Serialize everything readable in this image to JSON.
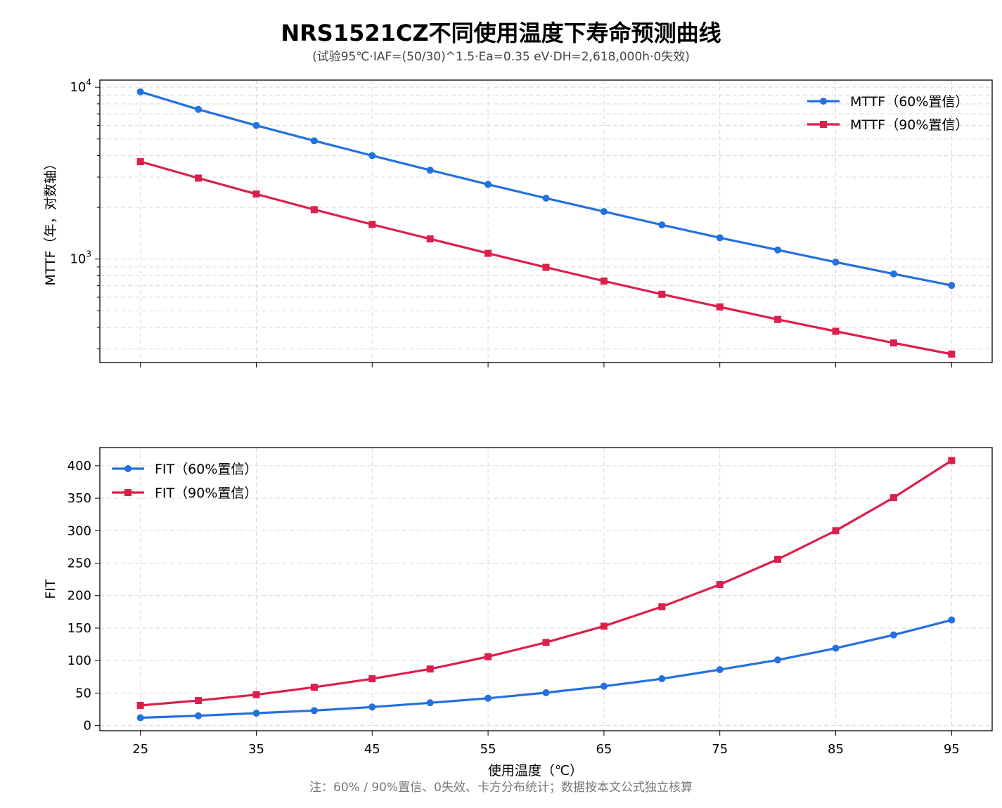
{
  "title": "NRS1521CZ不同使用温度下寿命预测曲线",
  "subtitle": "(试验95℃·IAF=(50/30)^1.5·Ea=0.35 eV·DH=2,618,000h·0失效)",
  "footnote": "注：60% / 90%置信、0失效、卡方分布统计；数据按本文公式独立核算",
  "colors": {
    "series60": "#2370e0",
    "series90": "#dc1f4b",
    "grid": "#d9d9d9"
  },
  "chart_data": [
    {
      "type": "line",
      "ylabel": "MTTF（年，对数轴）",
      "xlabel": "",
      "yscale": "log",
      "ylim": [
        250,
        11000
      ],
      "yticks": [
        {
          "value": 1000,
          "label": "10",
          "exp": "3"
        },
        {
          "value": 10000,
          "label": "10",
          "exp": "4"
        }
      ],
      "grid": true,
      "legend": "top-right",
      "x": [
        25,
        30,
        35,
        40,
        45,
        50,
        55,
        60,
        65,
        70,
        75,
        80,
        85,
        90,
        95
      ],
      "series": [
        {
          "name": "MTTF（60%置信）",
          "marker": "circle",
          "color": "#2370e0",
          "values": [
            9400,
            7430,
            5990,
            4880,
            4000,
            3290,
            2720,
            2260,
            1890,
            1580,
            1330,
            1130,
            960,
            820,
            703
          ]
        },
        {
          "name": "MTTF（90%置信）",
          "marker": "square",
          "color": "#dc1f4b",
          "values": [
            3690,
            2960,
            2390,
            1940,
            1590,
            1310,
            1080,
            895,
            745,
            624,
            527,
            445,
            380,
            325,
            280
          ]
        }
      ]
    },
    {
      "type": "line",
      "ylabel": "FIT",
      "xlabel": "使用温度（℃）",
      "ylim": [
        -8,
        428
      ],
      "yticks": [
        0,
        50,
        100,
        150,
        200,
        250,
        300,
        350,
        400
      ],
      "xticks": [
        25,
        35,
        45,
        55,
        65,
        75,
        85,
        95
      ],
      "grid": true,
      "legend": "top-left",
      "x": [
        25,
        30,
        35,
        40,
        45,
        50,
        55,
        60,
        65,
        70,
        75,
        80,
        85,
        90,
        95
      ],
      "series": [
        {
          "name": "FIT（60%置信）",
          "marker": "circle",
          "color": "#2370e0",
          "values": [
            12,
            15,
            19,
            23,
            28.5,
            35,
            42,
            50.5,
            60.5,
            72,
            86,
            101,
            119,
            139.5,
            162.5
          ]
        },
        {
          "name": "FIT（90%置信）",
          "marker": "square",
          "color": "#dc1f4b",
          "values": [
            31,
            38.5,
            47.5,
            59,
            72,
            87,
            106,
            128,
            153,
            183,
            217,
            256,
            300,
            351,
            408
          ]
        }
      ]
    }
  ]
}
